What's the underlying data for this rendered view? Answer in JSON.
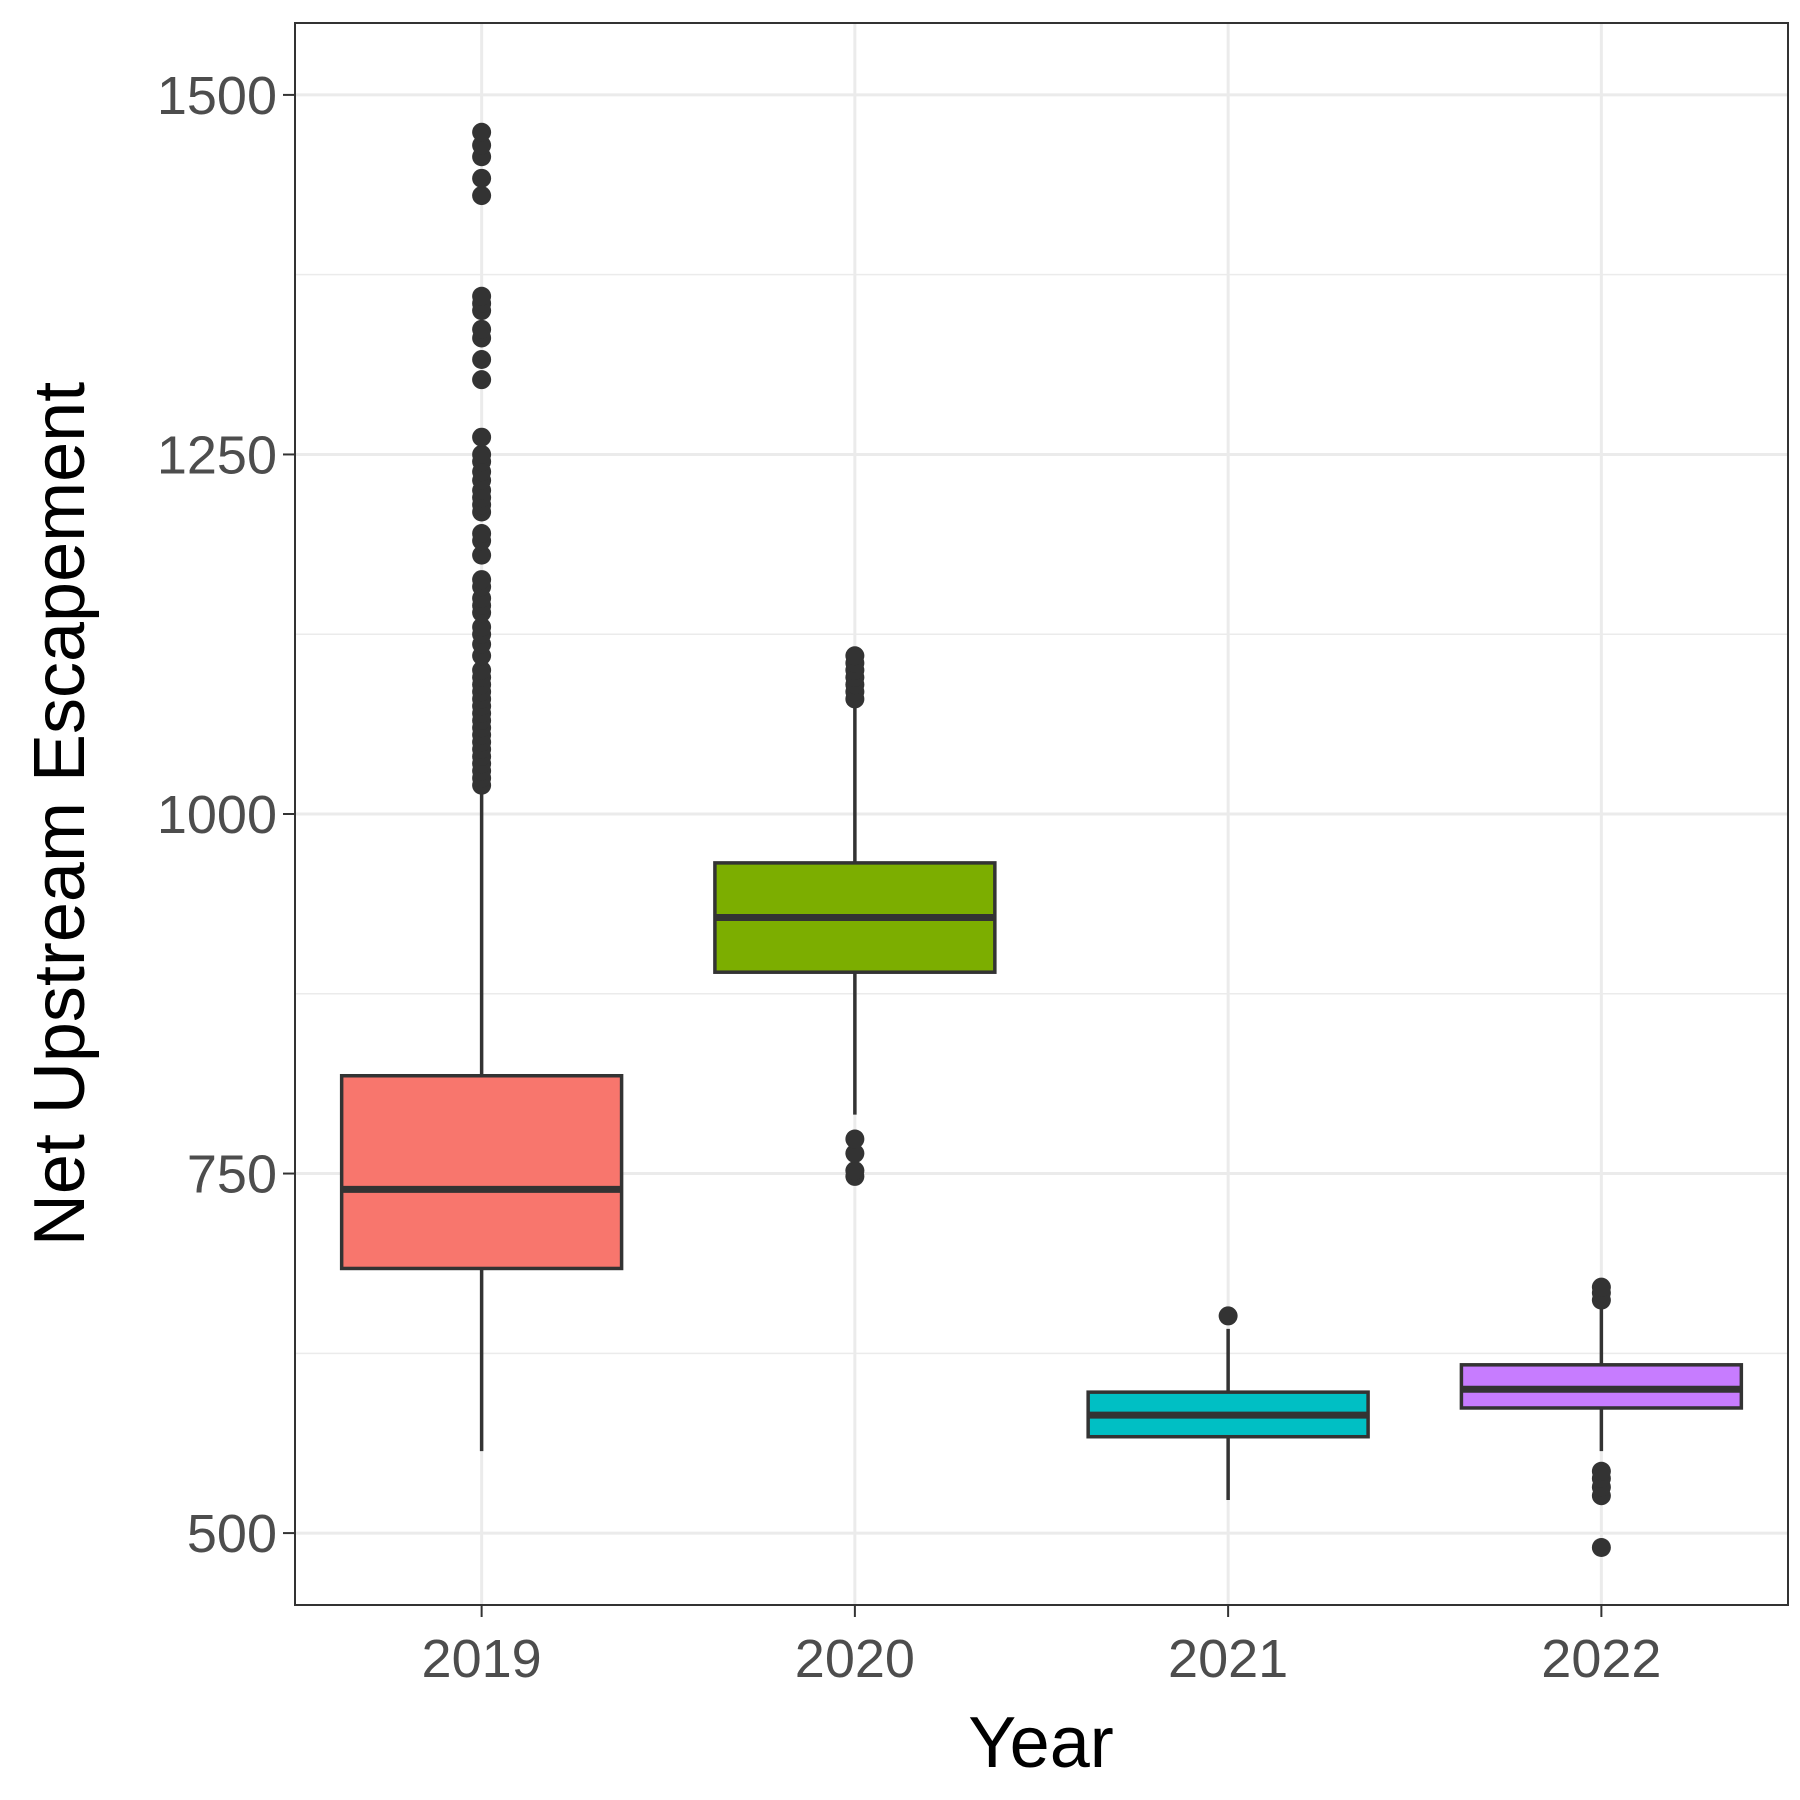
{
  "chart_data": {
    "type": "boxplot",
    "xlabel": "Year",
    "ylabel": "Net Upstream Escapement",
    "ylim": [
      450,
      1550
    ],
    "yticks": [
      500,
      750,
      1000,
      1250,
      1500
    ],
    "grid": true,
    "categories": [
      "2019",
      "2020",
      "2021",
      "2022"
    ],
    "fill_colors": [
      "#F8766D",
      "#7CAE00",
      "#00BFC4",
      "#C77CFF"
    ],
    "boxes": [
      {
        "category": "2019",
        "whisker_low": 557,
        "q1": 684,
        "median": 739,
        "q3": 818,
        "whisker_high": 1018,
        "outliers": [
          1020,
          1025,
          1030,
          1035,
          1040,
          1045,
          1050,
          1055,
          1060,
          1065,
          1070,
          1075,
          1080,
          1085,
          1090,
          1095,
          1100,
          1110,
          1118,
          1125,
          1130,
          1140,
          1145,
          1150,
          1158,
          1163,
          1180,
          1190,
          1195,
          1210,
          1215,
          1220,
          1225,
          1232,
          1238,
          1245,
          1250,
          1262,
          1302,
          1316,
          1331,
          1337,
          1350,
          1355,
          1360,
          1430,
          1442,
          1457,
          1465,
          1474
        ]
      },
      {
        "category": "2020",
        "whisker_low": 791,
        "q1": 890,
        "median": 928,
        "q3": 966,
        "whisker_high": 1078,
        "outliers": [
          748,
          752,
          764,
          774,
          1080,
          1085,
          1090,
          1095,
          1100,
          1105,
          1110
        ]
      },
      {
        "category": "2021",
        "whisker_low": 523,
        "q1": 567,
        "median": 582,
        "q3": 598,
        "whisker_high": 642,
        "outliers": [
          651
        ]
      },
      {
        "category": "2022",
        "whisker_low": 557,
        "q1": 587,
        "median": 600,
        "q3": 617,
        "whisker_high": 658,
        "outliers": [
          490,
          526,
          532,
          538,
          543,
          662,
          667,
          671
        ]
      }
    ]
  }
}
